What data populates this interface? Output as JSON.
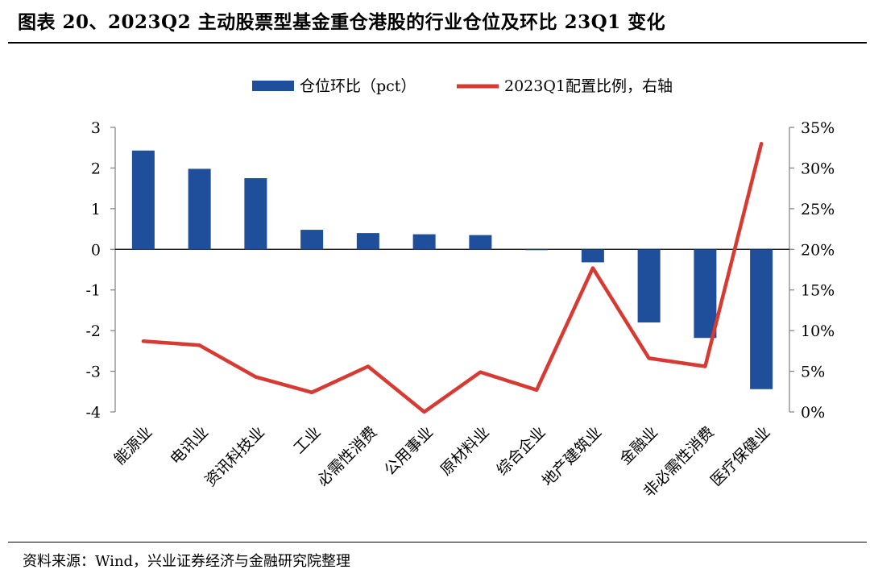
{
  "title": "图表 20、2023Q2 主动股票型基金重仓港股的行业仓位及环比 23Q1 变化",
  "source": "资料来源：Wind，兴业证券经济与金融研究院整理",
  "colors": {
    "bar": "#1f4e9a",
    "line": "#d73a33"
  },
  "chart_data": {
    "type": "bar+line",
    "title": "",
    "categories": [
      "能源业",
      "电讯业",
      "资讯科技业",
      "工业",
      "必需性消费",
      "公用事业",
      "原材料业",
      "综合企业",
      "地产建筑业",
      "金融业",
      "非必需性消费",
      "医疗保健业"
    ],
    "series": [
      {
        "name": "仓位环比（pct）",
        "type": "bar",
        "axis": "left",
        "values": [
          2.43,
          1.98,
          1.75,
          0.48,
          0.4,
          0.37,
          0.35,
          -0.02,
          -0.32,
          -1.8,
          -2.18,
          -3.44
        ]
      },
      {
        "name": "2023Q1配置比例，右轴",
        "type": "line",
        "axis": "right",
        "values": [
          8.7,
          8.2,
          4.3,
          2.4,
          5.6,
          0.0,
          4.9,
          2.7,
          17.7,
          6.6,
          5.6,
          33.0
        ]
      }
    ],
    "y_left": {
      "min": -4,
      "max": 3,
      "ticks": [
        "-4",
        "-3",
        "-2",
        "-1",
        "0",
        "1",
        "2",
        "3"
      ]
    },
    "y_right": {
      "min": 0,
      "max": 35,
      "ticks": [
        "0%",
        "5%",
        "10%",
        "15%",
        "20%",
        "25%",
        "30%",
        "35%"
      ]
    },
    "legend_position": "top-center",
    "grid": false
  }
}
